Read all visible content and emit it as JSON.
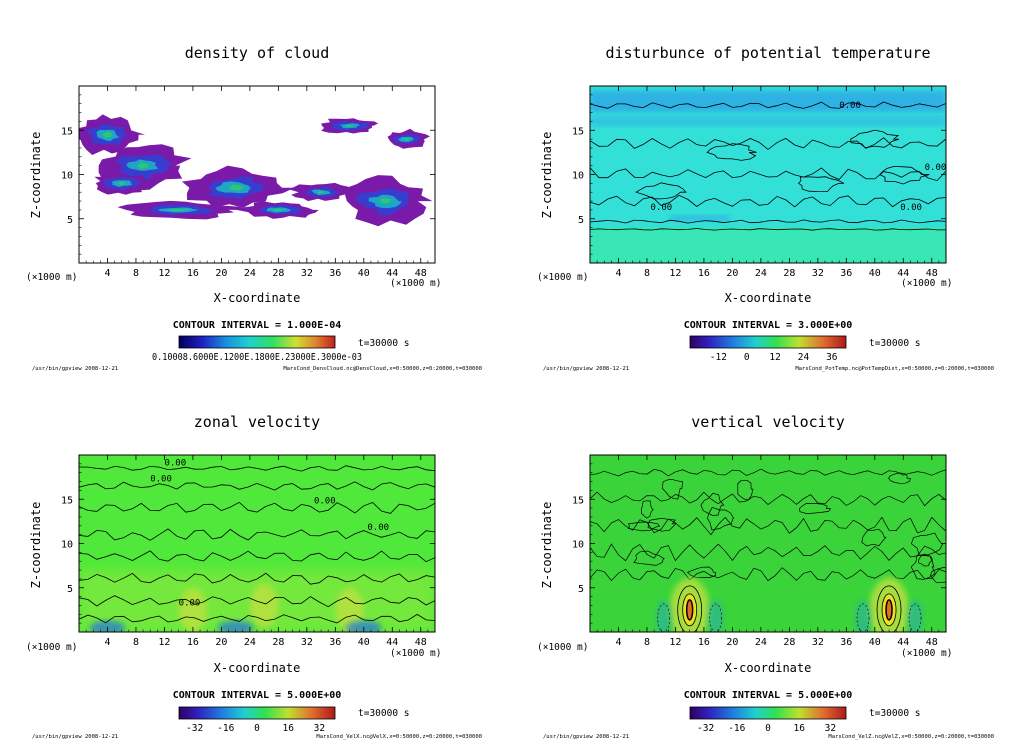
{
  "colors": {
    "background": "#ffffff",
    "frame": "#000000",
    "cloud_low": "#7a1aa8",
    "cloud_mid": "#2b45d6",
    "cloud_high": "#18c0c0",
    "cloud_peak": "#30d060",
    "theta_field": "#33e0d8",
    "theta_bands": "#2a8df0",
    "theta_lower": "#3be8a8",
    "velx_field": "#50e83a",
    "velz_field": "#3ad43a"
  },
  "footer_left": "/usr/bin/gpview   2008-12-21",
  "chart_data": [
    {
      "id": "dens_cloud",
      "type": "heatmap",
      "title": "density of cloud",
      "xlabel": "X-coordinate",
      "ylabel": "Z-coordinate",
      "x_unit_label": "(×1000 m)",
      "y_unit_label": "(×1000 m)",
      "xlim": [
        0,
        50
      ],
      "ylim": [
        0,
        20
      ],
      "x_ticks": [
        4,
        8,
        12,
        16,
        20,
        24,
        28,
        32,
        36,
        40,
        44,
        48
      ],
      "y_ticks": [
        5,
        10,
        15
      ],
      "contour_interval_label": "CONTOUR INTERVAL = 1.000E-04",
      "time_label": "t=30000 s",
      "colorbar_tick_text": "0.1000E-03,  0.2000E-03 ... 0.3000E-03 (overlapping labels)",
      "colorbar_labels_display": "0.10008.6000E.1200E.1800E.23000E.3000e-03",
      "footer_right": "MarsCond_DensCloud.nc@DensCloud,x=0:50000,z=0:20000,t=030000",
      "contour_labels": [],
      "cloud_regions": [
        {
          "x": 4,
          "z": 14.5,
          "rx": 4.5,
          "rz": 2.2
        },
        {
          "x": 9,
          "z": 11,
          "rx": 6,
          "rz": 2.5
        },
        {
          "x": 6,
          "z": 9,
          "rx": 4,
          "rz": 1.2
        },
        {
          "x": 22,
          "z": 8.5,
          "rx": 7,
          "rz": 2.2
        },
        {
          "x": 14,
          "z": 6,
          "rx": 8,
          "rz": 1.0
        },
        {
          "x": 28,
          "z": 6,
          "rx": 5,
          "rz": 1.0
        },
        {
          "x": 34,
          "z": 8,
          "rx": 4,
          "rz": 1.0
        },
        {
          "x": 43,
          "z": 7,
          "rx": 6,
          "rz": 2.5
        },
        {
          "x": 38,
          "z": 15.5,
          "rx": 4,
          "rz": 0.9
        },
        {
          "x": 46,
          "z": 14,
          "rx": 3,
          "rz": 1.0
        }
      ]
    },
    {
      "id": "pot_temp_dist",
      "type": "heatmap",
      "title": "disturbunce of potential temperature",
      "xlabel": "X-coordinate",
      "ylabel": "Z-coordinate",
      "x_unit_label": "(×1000 m)",
      "y_unit_label": "(×1000 m)",
      "xlim": [
        0,
        50
      ],
      "ylim": [
        0,
        20
      ],
      "x_ticks": [
        4,
        8,
        12,
        16,
        20,
        24,
        28,
        32,
        36,
        40,
        44,
        48
      ],
      "y_ticks": [
        5,
        10,
        15
      ],
      "contour_interval_label": "CONTOUR INTERVAL = 3.000E+00",
      "time_label": "t=30000 s",
      "colorbar_ticks": [
        -12,
        0,
        12,
        24,
        36
      ],
      "colorbar_range": [
        -24,
        42
      ],
      "footer_right": "MarsCond_PotTemp.nc@PotTempDist,x=0:50000,z=0:20000,t=030000",
      "contour_labels": [
        "0.00",
        "0.00",
        "0.00",
        "0.00"
      ]
    },
    {
      "id": "vel_x",
      "type": "heatmap",
      "title": "zonal velocity",
      "xlabel": "X-coordinate",
      "ylabel": "Z-coordinate",
      "x_unit_label": "(×1000 m)",
      "y_unit_label": "(×1000 m)",
      "xlim": [
        0,
        50
      ],
      "ylim": [
        0,
        20
      ],
      "x_ticks": [
        4,
        8,
        12,
        16,
        20,
        24,
        28,
        32,
        36,
        40,
        44,
        48
      ],
      "y_ticks": [
        5,
        10,
        15
      ],
      "contour_interval_label": "CONTOUR INTERVAL = 5.000E+00",
      "time_label": "t=30000 s",
      "colorbar_ticks": [
        -32,
        -16,
        0,
        16,
        32
      ],
      "colorbar_range": [
        -40,
        40
      ],
      "footer_right": "MarsCond_VelX.nc@VelX,x=0:50000,z=0:20000,t=030000",
      "contour_labels": [
        "0.00",
        "0.00",
        "0.00",
        "0.00",
        "0.00"
      ]
    },
    {
      "id": "vel_z",
      "type": "heatmap",
      "title": "vertical velocity",
      "xlabel": "X-coordinate",
      "ylabel": "Z-coordinate",
      "x_unit_label": "(×1000 m)",
      "y_unit_label": "(×1000 m)",
      "xlim": [
        0,
        50
      ],
      "ylim": [
        0,
        20
      ],
      "x_ticks": [
        4,
        8,
        12,
        16,
        20,
        24,
        28,
        32,
        36,
        40,
        44,
        48
      ],
      "y_ticks": [
        5,
        10,
        15
      ],
      "contour_interval_label": "CONTOUR INTERVAL = 5.000E+00",
      "time_label": "t=30000 s",
      "colorbar_ticks": [
        -32,
        -16,
        0,
        16,
        32
      ],
      "colorbar_range": [
        -40,
        40
      ],
      "footer_right": "MarsCond_VelZ.nc@VelZ,x=0:50000,z=0:20000,t=030000",
      "contour_labels": [],
      "updraft_cores": [
        {
          "x": 14,
          "z": 2.5
        },
        {
          "x": 42,
          "z": 2.5
        }
      ]
    }
  ]
}
